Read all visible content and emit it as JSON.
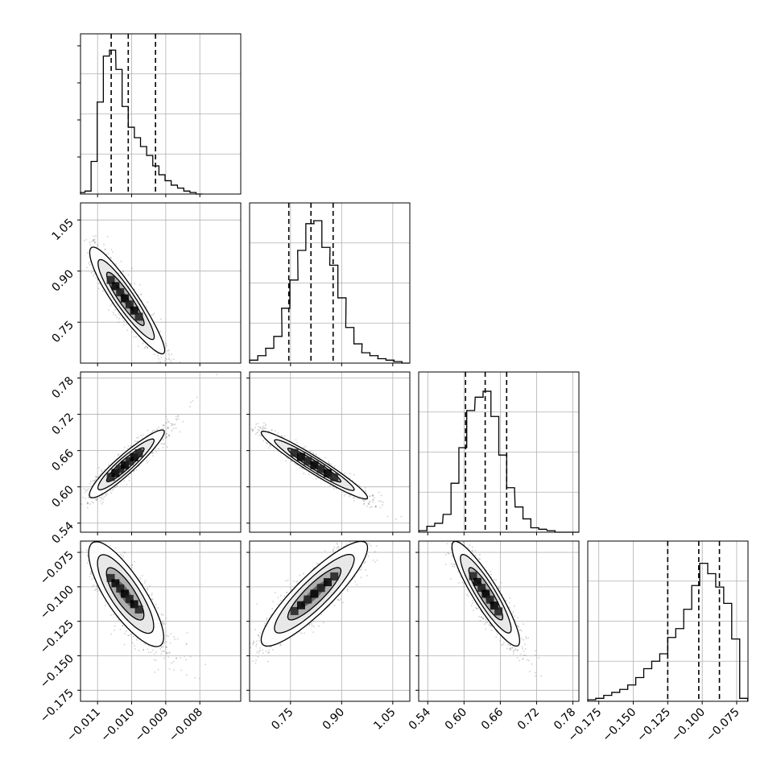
{
  "chart_data": {
    "type": "corner",
    "parameters": [
      {
        "xlim": [
          -0.0115,
          -0.0068
        ],
        "ticks": [
          -0.011,
          -0.01,
          -0.009,
          -0.008
        ],
        "tick_labels": [
          "−0.011",
          "−0.010",
          "−0.009",
          "−0.008"
        ],
        "quantiles": [
          -0.0106,
          -0.0101,
          -0.0093
        ],
        "hist_centers": [
          -0.01146,
          -0.01128,
          -0.0111,
          -0.01092,
          -0.01074,
          -0.01056,
          -0.01037,
          -0.01019,
          -0.01001,
          -0.00983,
          -0.00965,
          -0.00947,
          -0.00929,
          -0.00911,
          -0.00893,
          -0.00875,
          -0.00856,
          -0.00838,
          -0.0082,
          -0.00802
        ],
        "hist_counts": [
          0.01,
          0.02,
          0.22,
          0.62,
          0.93,
          0.97,
          0.84,
          0.59,
          0.45,
          0.38,
          0.32,
          0.26,
          0.19,
          0.13,
          0.09,
          0.06,
          0.04,
          0.02,
          0.01,
          0.0
        ],
        "hist_ymax": 1.0
      },
      {
        "xlim": [
          0.63,
          1.1
        ],
        "ticks": [
          0.75,
          0.9,
          1.05
        ],
        "tick_labels": [
          "0.75",
          "0.90",
          "1.05"
        ],
        "quantiles": [
          0.745,
          0.81,
          0.875
        ],
        "hist_centers": [
          0.642,
          0.666,
          0.689,
          0.713,
          0.736,
          0.76,
          0.783,
          0.807,
          0.83,
          0.854,
          0.877,
          0.901,
          0.924,
          0.948,
          0.971,
          0.995,
          1.018,
          1.042,
          1.065,
          1.089
        ],
        "hist_counts": [
          0.02,
          0.05,
          0.1,
          0.18,
          0.37,
          0.56,
          0.76,
          0.94,
          0.96,
          0.78,
          0.66,
          0.44,
          0.24,
          0.13,
          0.07,
          0.05,
          0.03,
          0.02,
          0.01,
          0.0
        ],
        "hist_ymax": 1.0
      },
      {
        "xlim": [
          0.525,
          0.79
        ],
        "ticks": [
          0.54,
          0.6,
          0.66,
          0.72,
          0.78
        ],
        "tick_labels": [
          "0.54",
          "0.60",
          "0.66",
          "0.72",
          "0.78"
        ],
        "quantiles": [
          0.6025,
          0.635,
          0.6705
        ],
        "hist_centers": [
          0.532,
          0.545,
          0.558,
          0.572,
          0.585,
          0.598,
          0.611,
          0.625,
          0.638,
          0.651,
          0.664,
          0.677,
          0.691,
          0.704,
          0.717,
          0.73,
          0.744,
          0.757,
          0.77,
          0.783
        ],
        "hist_counts": [
          0.01,
          0.04,
          0.06,
          0.12,
          0.33,
          0.57,
          0.82,
          0.91,
          0.95,
          0.78,
          0.52,
          0.3,
          0.17,
          0.09,
          0.03,
          0.02,
          0.01,
          0.0,
          0.0,
          0.0
        ],
        "hist_ymax": 1.0
      },
      {
        "xlim": [
          -0.183,
          -0.0668
        ],
        "ticks": [
          -0.175,
          -0.15,
          -0.125,
          -0.1,
          -0.075
        ],
        "tick_labels": [
          "−0.175",
          "−0.150",
          "−0.125",
          "−0.100",
          "−0.075"
        ],
        "quantiles": [
          -0.125,
          -0.1025,
          -0.0875
        ],
        "hist_centers": [
          -0.1801,
          -0.1743,
          -0.1685,
          -0.1627,
          -0.1569,
          -0.1511,
          -0.1453,
          -0.1395,
          -0.1337,
          -0.1279,
          -0.1221,
          -0.1163,
          -0.1105,
          -0.1047,
          -0.0989,
          -0.0931,
          -0.0873,
          -0.0815,
          -0.0757,
          -0.0699
        ],
        "hist_counts": [
          0.01,
          0.02,
          0.04,
          0.06,
          0.08,
          0.11,
          0.16,
          0.22,
          0.27,
          0.32,
          0.43,
          0.49,
          0.62,
          0.78,
          0.93,
          0.86,
          0.77,
          0.66,
          0.42,
          0.02
        ],
        "hist_ymax": 1.0
      }
    ],
    "y_axes": {
      "1": {
        "ticks": [
          0.75,
          0.9,
          1.05
        ],
        "tick_labels": [
          "0.75",
          "0.90",
          "1.05"
        ]
      },
      "2": {
        "ticks": [
          0.54,
          0.6,
          0.66,
          0.72,
          0.78
        ],
        "tick_labels": [
          "0.54",
          "0.60",
          "0.66",
          "0.72",
          "0.78"
        ]
      },
      "3": {
        "ticks": [
          -0.175,
          -0.15,
          -0.125,
          -0.1,
          -0.075
        ],
        "tick_labels": [
          "−0.175",
          "−0.150",
          "−0.125",
          "−0.100",
          "−0.075"
        ]
      }
    },
    "pairs": [
      {
        "row": 1,
        "col": 0,
        "mean": [
          -0.0102,
          0.82
        ],
        "sd": [
          0.00055,
          0.078
        ],
        "corr": -0.92,
        "skew": 0.35
      },
      {
        "row": 2,
        "col": 0,
        "mean": [
          -0.0102,
          0.636
        ],
        "sd": [
          0.00055,
          0.028
        ],
        "corr": 0.93,
        "skew": 0.3
      },
      {
        "row": 2,
        "col": 1,
        "mean": [
          0.82,
          0.636
        ],
        "sd": [
          0.078,
          0.028
        ],
        "corr": -0.96,
        "skew": 0.0
      },
      {
        "row": 3,
        "col": 0,
        "mean": [
          -0.0102,
          -0.105
        ],
        "sd": [
          0.00055,
          0.019
        ],
        "corr": -0.8,
        "skew": 0.2
      },
      {
        "row": 3,
        "col": 1,
        "mean": [
          0.82,
          -0.105
        ],
        "sd": [
          0.078,
          0.019
        ],
        "corr": 0.88,
        "skew": 0.0
      },
      {
        "row": 3,
        "col": 2,
        "mean": [
          0.636,
          -0.105
        ],
        "sd": [
          0.028,
          0.019
        ],
        "corr": -0.9,
        "skew": 0.0
      }
    ],
    "contour_levels_sigma": [
      0.5,
      1.0,
      1.5,
      2.0
    ],
    "grid": true,
    "colors": {
      "hist": "#000000",
      "points": "#7f7f7f",
      "grid": "#b0b0b0",
      "contour": "#000000"
    }
  }
}
